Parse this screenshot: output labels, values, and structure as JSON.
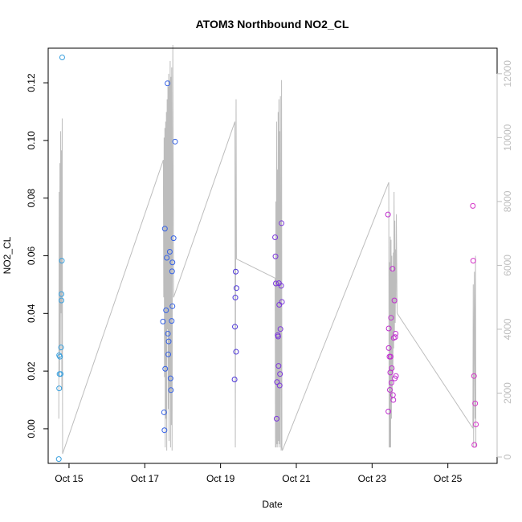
{
  "chart_data": {
    "type": "scatter",
    "title": "ATOM3 Northbound NO2_CL",
    "xlabel": "Date",
    "ylabel": "NO2_CL",
    "x_ticks": [
      "Oct 15",
      "Oct 17",
      "Oct 19",
      "Oct 21",
      "Oct 23",
      "Oct 25"
    ],
    "x_tick_days": [
      15,
      17,
      19,
      21,
      23,
      25
    ],
    "xlim": [
      14.45,
      26.3
    ],
    "ylim": [
      -0.012,
      0.132
    ],
    "y_ticks": [
      0.0,
      0.02,
      0.04,
      0.06,
      0.08,
      0.1,
      0.12
    ],
    "y_tick_labels": [
      "0.00",
      "0.02",
      "0.04",
      "0.06",
      "0.08",
      "0.10",
      "0.12"
    ],
    "y2lim": [
      -200,
      12800
    ],
    "y2_ticks": [
      0,
      2000,
      4000,
      6000,
      8000,
      10000,
      12000
    ],
    "y2_tick_labels": [
      "0",
      "2000",
      "4000",
      "6000",
      "8000",
      "10000",
      "12000"
    ],
    "grid": false,
    "colors": {
      "flight1": "#3aa0de",
      "flight2": "#3461e6",
      "flight3": "#4a33d9",
      "flight4": "#7b35dc",
      "flight5": "#c02fcf",
      "flight6": "#d534c8",
      "altitude_line": "#bdbdbd"
    },
    "series": [
      {
        "color": "#3aa0de",
        "points": [
          {
            "x": 14.73,
            "y": -0.0105
          },
          {
            "x": 14.74,
            "y": 0.014
          },
          {
            "x": 14.75,
            "y": 0.019
          },
          {
            "x": 14.76,
            "y": 0.025
          },
          {
            "x": 14.74,
            "y": 0.0255
          },
          {
            "x": 14.78,
            "y": 0.019
          },
          {
            "x": 14.79,
            "y": 0.0282
          },
          {
            "x": 14.8,
            "y": 0.0445
          },
          {
            "x": 14.8,
            "y": 0.0467
          },
          {
            "x": 14.81,
            "y": 0.0583
          },
          {
            "x": 14.82,
            "y": 0.1288
          }
        ]
      },
      {
        "color": "#3461e6",
        "points": [
          {
            "x": 17.48,
            "y": 0.0372
          },
          {
            "x": 17.51,
            "y": 0.0057
          },
          {
            "x": 17.52,
            "y": -0.0005
          },
          {
            "x": 17.53,
            "y": 0.0694
          },
          {
            "x": 17.54,
            "y": 0.0208
          },
          {
            "x": 17.56,
            "y": 0.0411
          },
          {
            "x": 17.58,
            "y": 0.0593
          },
          {
            "x": 17.6,
            "y": 0.1198
          },
          {
            "x": 17.61,
            "y": 0.033
          },
          {
            "x": 17.62,
            "y": 0.0258
          },
          {
            "x": 17.63,
            "y": 0.0303
          },
          {
            "x": 17.66,
            "y": 0.0614
          },
          {
            "x": 17.68,
            "y": 0.0175
          },
          {
            "x": 17.69,
            "y": 0.0134
          },
          {
            "x": 17.71,
            "y": 0.0374
          },
          {
            "x": 17.72,
            "y": 0.0546
          },
          {
            "x": 17.73,
            "y": 0.0577
          },
          {
            "x": 17.73,
            "y": 0.0425
          },
          {
            "x": 17.76,
            "y": 0.0661
          },
          {
            "x": 17.8,
            "y": 0.0996
          }
        ]
      },
      {
        "color": "#4a33d9",
        "points": [
          {
            "x": 19.37,
            "y": 0.0171
          },
          {
            "x": 19.38,
            "y": 0.0354
          },
          {
            "x": 19.39,
            "y": 0.0455
          },
          {
            "x": 19.4,
            "y": 0.0545
          },
          {
            "x": 19.41,
            "y": 0.0267
          },
          {
            "x": 19.42,
            "y": 0.0488
          }
        ]
      },
      {
        "color": "#7b35dc",
        "points": [
          {
            "x": 20.44,
            "y": 0.0664
          },
          {
            "x": 20.45,
            "y": 0.0598
          },
          {
            "x": 20.46,
            "y": 0.0504
          },
          {
            "x": 20.48,
            "y": 0.0035
          },
          {
            "x": 20.49,
            "y": 0.0162
          },
          {
            "x": 20.51,
            "y": 0.0325
          },
          {
            "x": 20.52,
            "y": 0.032
          },
          {
            "x": 20.53,
            "y": 0.0218
          },
          {
            "x": 20.54,
            "y": 0.0505
          },
          {
            "x": 20.55,
            "y": 0.043
          },
          {
            "x": 20.56,
            "y": 0.015
          },
          {
            "x": 20.57,
            "y": 0.019
          },
          {
            "x": 20.58,
            "y": 0.0346
          },
          {
            "x": 20.6,
            "y": 0.0496
          },
          {
            "x": 20.61,
            "y": 0.0713
          },
          {
            "x": 20.62,
            "y": 0.044
          }
        ]
      },
      {
        "color": "#c02fcf",
        "points": [
          {
            "x": 23.42,
            "y": 0.0743
          },
          {
            "x": 23.43,
            "y": 0.006
          },
          {
            "x": 23.44,
            "y": 0.0348
          },
          {
            "x": 23.44,
            "y": 0.028
          },
          {
            "x": 23.46,
            "y": 0.025
          },
          {
            "x": 23.47,
            "y": 0.0135
          },
          {
            "x": 23.48,
            "y": 0.0195
          },
          {
            "x": 23.49,
            "y": 0.025
          },
          {
            "x": 23.5,
            "y": 0.0385
          },
          {
            "x": 23.51,
            "y": 0.016
          },
          {
            "x": 23.52,
            "y": 0.021
          },
          {
            "x": 23.54,
            "y": 0.0555
          },
          {
            "x": 23.55,
            "y": 0.0117
          },
          {
            "x": 23.56,
            "y": 0.01
          },
          {
            "x": 23.57,
            "y": 0.0315
          },
          {
            "x": 23.59,
            "y": 0.0445
          },
          {
            "x": 23.6,
            "y": 0.0175
          },
          {
            "x": 23.61,
            "y": 0.0318
          },
          {
            "x": 23.62,
            "y": 0.033
          },
          {
            "x": 23.63,
            "y": 0.0183
          }
        ]
      },
      {
        "color": "#d534c8",
        "points": [
          {
            "x": 25.66,
            "y": 0.0773
          },
          {
            "x": 25.67,
            "y": 0.0583
          },
          {
            "x": 25.69,
            "y": 0.0183
          },
          {
            "x": 25.7,
            "y": -0.0056
          },
          {
            "x": 25.72,
            "y": 0.0088
          },
          {
            "x": 25.74,
            "y": 0.0015
          }
        ]
      }
    ],
    "altitude_segments": [
      {
        "name": "flight1",
        "points": [
          [
            14.73,
            1200
          ],
          [
            14.74,
            8300
          ],
          [
            14.75,
            2500
          ],
          [
            14.76,
            9200
          ],
          [
            14.77,
            3300
          ],
          [
            14.78,
            10200
          ],
          [
            14.79,
            4500
          ],
          [
            14.8,
            9600
          ],
          [
            14.81,
            2100
          ],
          [
            14.82,
            10600
          ],
          [
            14.83,
            100
          ]
        ]
      },
      {
        "name": "ferry1",
        "points": [
          [
            14.83,
            100
          ],
          [
            17.49,
            9300
          ]
        ]
      },
      {
        "name": "flight2",
        "points": [
          [
            17.49,
            9300
          ],
          [
            17.5,
            5000
          ],
          [
            17.51,
            10000
          ],
          [
            17.52,
            2500
          ],
          [
            17.53,
            10300
          ],
          [
            17.54,
            300
          ],
          [
            17.55,
            10500
          ],
          [
            17.56,
            1200
          ],
          [
            17.57,
            10800
          ],
          [
            17.58,
            200
          ],
          [
            17.59,
            11200
          ],
          [
            17.6,
            4000
          ],
          [
            17.61,
            11600
          ],
          [
            17.62,
            1500
          ],
          [
            17.63,
            12000
          ],
          [
            17.64,
            500
          ],
          [
            17.65,
            11800
          ],
          [
            17.66,
            2000
          ],
          [
            17.67,
            12400
          ],
          [
            17.68,
            300
          ],
          [
            17.69,
            11900
          ],
          [
            17.7,
            1000
          ],
          [
            17.71,
            12200
          ],
          [
            17.72,
            200
          ],
          [
            17.74,
            12900
          ],
          [
            17.76,
            5000
          ]
        ]
      },
      {
        "name": "ferry2",
        "points": [
          [
            17.76,
            5000
          ],
          [
            19.38,
            10500
          ]
        ]
      },
      {
        "name": "flight3",
        "points": [
          [
            19.38,
            10500
          ],
          [
            19.39,
            300
          ],
          [
            19.4,
            6200
          ],
          [
            19.41,
            11200
          ],
          [
            19.42,
            6200
          ]
        ]
      },
      {
        "name": "ferry3",
        "points": [
          [
            19.42,
            6200
          ],
          [
            20.44,
            5600
          ]
        ]
      },
      {
        "name": "flight4",
        "points": [
          [
            20.44,
            5600
          ],
          [
            20.45,
            300
          ],
          [
            20.46,
            8000
          ],
          [
            20.47,
            300
          ],
          [
            20.48,
            10500
          ],
          [
            20.49,
            400
          ],
          [
            20.5,
            9000
          ],
          [
            20.51,
            300
          ],
          [
            20.52,
            10800
          ],
          [
            20.53,
            500
          ],
          [
            20.54,
            11200
          ],
          [
            20.55,
            400
          ],
          [
            20.56,
            10200
          ],
          [
            20.57,
            300
          ],
          [
            20.58,
            11300
          ],
          [
            20.6,
            200
          ],
          [
            20.61,
            11800
          ],
          [
            20.62,
            300
          ],
          [
            20.63,
            200
          ]
        ]
      },
      {
        "name": "ferry4",
        "points": [
          [
            20.63,
            200
          ],
          [
            23.44,
            8600
          ]
        ]
      },
      {
        "name": "flight5",
        "points": [
          [
            23.44,
            8600
          ],
          [
            23.45,
            300
          ],
          [
            23.46,
            6100
          ],
          [
            23.47,
            300
          ],
          [
            23.48,
            6900
          ],
          [
            23.49,
            300
          ],
          [
            23.5,
            6800
          ],
          [
            23.51,
            1200
          ],
          [
            23.52,
            6300
          ],
          [
            23.53,
            1800
          ],
          [
            23.54,
            5800
          ],
          [
            23.55,
            2600
          ],
          [
            23.56,
            6400
          ],
          [
            23.57,
            3400
          ],
          [
            23.58,
            8300
          ],
          [
            23.59,
            3900
          ],
          [
            23.6,
            7400
          ],
          [
            23.61,
            4200
          ],
          [
            23.62,
            6500
          ],
          [
            23.63,
            4800
          ],
          [
            23.64,
            7600
          ],
          [
            23.66,
            4500
          ]
        ]
      },
      {
        "name": "ferry5",
        "points": [
          [
            23.66,
            4500
          ],
          [
            25.66,
            900
          ]
        ]
      },
      {
        "name": "flight6",
        "points": [
          [
            25.66,
            900
          ],
          [
            25.67,
            5400
          ],
          [
            25.68,
            300
          ],
          [
            25.7,
            5800
          ],
          [
            25.72,
            1200
          ],
          [
            25.73,
            6300
          ],
          [
            25.74,
            300
          ]
        ]
      }
    ]
  }
}
